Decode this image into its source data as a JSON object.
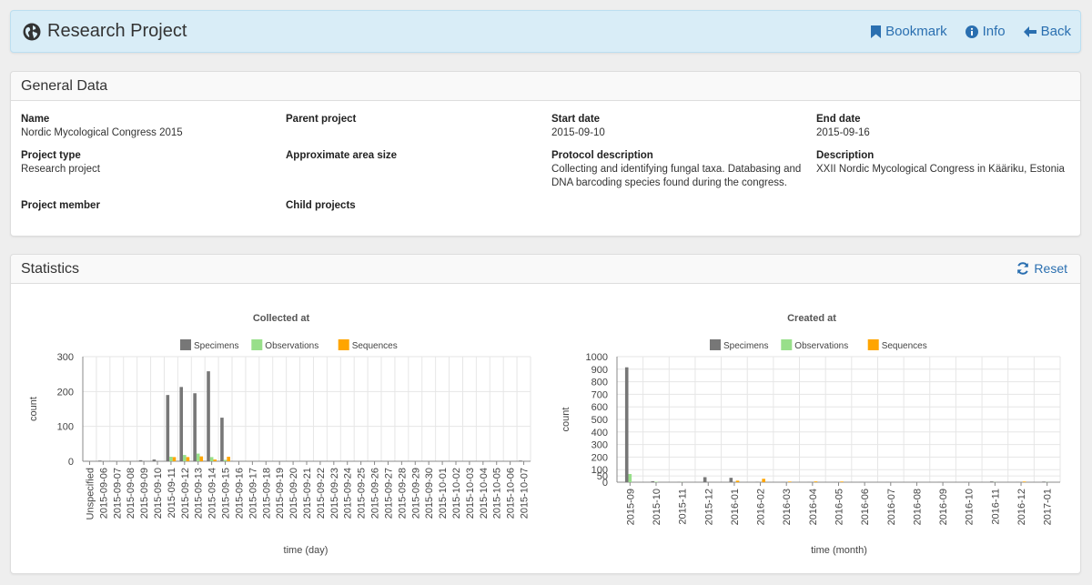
{
  "header": {
    "title": "Research Project",
    "bookmark_label": "Bookmark",
    "info_label": "Info",
    "back_label": "Back"
  },
  "general": {
    "title": "General Data",
    "fields": {
      "name_label": "Name",
      "name_value": "Nordic Mycological Congress 2015",
      "parent_label": "Parent project",
      "start_label": "Start date",
      "start_value": "2015-09-10",
      "end_label": "End date",
      "end_value": "2015-09-16",
      "type_label": "Project type",
      "type_value": "Research project",
      "area_label": "Approximate area size",
      "protocol_label": "Protocol description",
      "protocol_value": "Collecting and identifying fungal taxa. Databasing and DNA barcoding species found during the congress.",
      "description_label": "Description",
      "description_value": "XXII Nordic Mycological Congress in Kääriku, Estonia",
      "member_label": "Project member",
      "child_label": "Child projects"
    }
  },
  "statistics": {
    "title": "Statistics",
    "reset_label": "Reset"
  },
  "colors": {
    "specimens": "#777777",
    "observations": "#98df8a",
    "sequences": "#ffa500",
    "link": "#2a6fb0"
  },
  "chart_data": [
    {
      "type": "bar",
      "title": "Collected at",
      "xlabel": "time (day)",
      "ylabel": "count",
      "ylim": [
        0,
        300
      ],
      "yticks": [
        0,
        100,
        200,
        300
      ],
      "grid": true,
      "legend": "top-center",
      "categories": [
        "Unspecified",
        "2015-09-06",
        "2015-09-07",
        "2015-09-08",
        "2015-09-09",
        "2015-09-10",
        "2015-09-11",
        "2015-09-12",
        "2015-09-13",
        "2015-09-14",
        "2015-09-15",
        "2015-09-16",
        "2015-09-17",
        "2015-09-18",
        "2015-09-19",
        "2015-09-20",
        "2015-09-21",
        "2015-09-22",
        "2015-09-23",
        "2015-09-24",
        "2015-09-25",
        "2015-09-26",
        "2015-09-27",
        "2015-09-28",
        "2015-09-29",
        "2015-09-30",
        "2015-10-01",
        "2015-10-02",
        "2015-10-03",
        "2015-10-04",
        "2015-10-05",
        "2015-10-06",
        "2015-10-07"
      ],
      "series": [
        {
          "name": "Specimens",
          "values": [
            1,
            2,
            1,
            1,
            3,
            5,
            190,
            213,
            195,
            258,
            125,
            0,
            0,
            0,
            0,
            0,
            0,
            0,
            0,
            0,
            0,
            0,
            0,
            0,
            0,
            0,
            0,
            0,
            0,
            0,
            0,
            0,
            2
          ]
        },
        {
          "name": "Observations",
          "values": [
            0,
            0,
            0,
            0,
            0,
            0,
            13,
            18,
            22,
            12,
            4,
            0,
            0,
            0,
            0,
            0,
            0,
            0,
            0,
            0,
            0,
            0,
            0,
            0,
            0,
            0,
            0,
            0,
            0,
            0,
            0,
            0,
            0
          ]
        },
        {
          "name": "Sequences",
          "values": [
            0,
            0,
            0,
            0,
            0,
            0,
            12,
            12,
            14,
            5,
            13,
            0,
            0,
            0,
            0,
            0,
            0,
            0,
            0,
            0,
            0,
            0,
            0,
            0,
            0,
            0,
            0,
            0,
            0,
            0,
            0,
            0,
            0
          ]
        }
      ]
    },
    {
      "type": "bar",
      "title": "Created at",
      "xlabel": "time (month)",
      "ylabel": "count",
      "ylim": [
        0,
        1000
      ],
      "yticks": [
        0,
        50,
        100,
        200,
        300,
        400,
        500,
        600,
        700,
        800,
        900,
        1000
      ],
      "grid": true,
      "legend": "top-center",
      "categories": [
        "2015-09",
        "2015-10",
        "2015-11",
        "2015-12",
        "2016-01",
        "2016-02",
        "2016-03",
        "2016-04",
        "2016-05",
        "2016-06",
        "2016-07",
        "2016-08",
        "2016-09",
        "2016-10",
        "2016-11",
        "2016-12",
        "2017-01"
      ],
      "series": [
        {
          "name": "Specimens",
          "values": [
            915,
            8,
            2,
            40,
            35,
            3,
            1,
            1,
            1,
            1,
            1,
            1,
            1,
            1,
            6,
            1,
            5
          ]
        },
        {
          "name": "Observations",
          "values": [
            65,
            4,
            1,
            0,
            0,
            0,
            0,
            0,
            0,
            0,
            0,
            0,
            0,
            0,
            1,
            0,
            1
          ]
        },
        {
          "name": "Sequences",
          "values": [
            0,
            0,
            0,
            0,
            12,
            27,
            5,
            6,
            5,
            0,
            0,
            0,
            0,
            0,
            0,
            5,
            0
          ]
        }
      ]
    }
  ]
}
